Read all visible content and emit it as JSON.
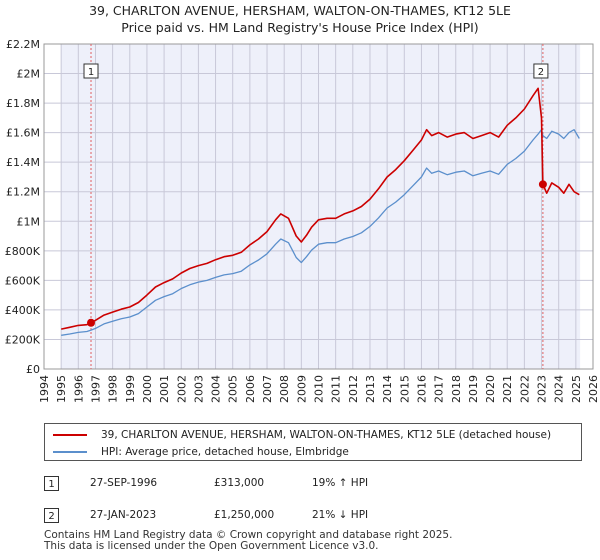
{
  "page": {
    "title_line1": "39, CHARLTON AVENUE, HERSHAM, WALTON-ON-THAMES, KT12 5LE",
    "title_line2": "Price paid vs. HM Land Registry's House Price Index (HPI)"
  },
  "legend": {
    "property_label": "39, CHARLTON AVENUE, HERSHAM, WALTON-ON-THAMES, KT12 5LE (detached house)",
    "hpi_label": "HPI: Average price, detached house, Elmbridge"
  },
  "sales": [
    {
      "badge": "1",
      "date": "27-SEP-1996",
      "price": "£313,000",
      "hpi_change": "19% ↑ HPI"
    },
    {
      "badge": "2",
      "date": "27-JAN-2023",
      "price": "£1,250,000",
      "hpi_change": "21% ↓ HPI"
    }
  ],
  "footer": {
    "line1": "Contains HM Land Registry data © Crown copyright and database right 2025.",
    "line2": "This data is licensed under the Open Government Licence v3.0."
  },
  "colors": {
    "property": "#cc0000",
    "hpi": "#5b8fcc",
    "grid": "#c8c8d8",
    "plot_bg": "#eef0fa",
    "future_bg": "#ffffff"
  },
  "chart_data": {
    "type": "line",
    "title": "39, CHARLTON AVENUE, HERSHAM, WALTON-ON-THAMES, KT12 5LE — Price paid vs. HM Land Registry's House Price Index (HPI)",
    "xlabel": "",
    "ylabel": "",
    "xlim": [
      1994,
      2026
    ],
    "ylim": [
      0,
      2200000
    ],
    "y_ticks": [
      0,
      200000,
      400000,
      600000,
      800000,
      1000000,
      1200000,
      1400000,
      1600000,
      1800000,
      2000000,
      2200000
    ],
    "y_tick_labels": [
      "£0",
      "£200K",
      "£400K",
      "£600K",
      "£800K",
      "£1M",
      "£1.2M",
      "£1.4M",
      "£1.6M",
      "£1.8M",
      "£2M",
      "£2.2M"
    ],
    "x_ticks": [
      1994,
      1995,
      1996,
      1997,
      1998,
      1999,
      2000,
      2001,
      2002,
      2003,
      2004,
      2005,
      2006,
      2007,
      2008,
      2009,
      2010,
      2011,
      2012,
      2013,
      2014,
      2015,
      2016,
      2017,
      2018,
      2019,
      2020,
      2021,
      2022,
      2023,
      2024,
      2025,
      2026
    ],
    "x_tick_labels": [
      "1994",
      "1995",
      "1996",
      "1997",
      "1998",
      "1999",
      "2000",
      "2001",
      "2002",
      "2003",
      "2004",
      "2005",
      "2006",
      "2007",
      "2008",
      "2009",
      "2010",
      "2011",
      "2012",
      "2013",
      "2014",
      "2015",
      "2016",
      "2017",
      "2018",
      "2019",
      "2020",
      "2021",
      "2022",
      "2023",
      "2024",
      "2025",
      "2026"
    ],
    "data_start": 1995,
    "data_end": 2025.25,
    "series": [
      {
        "name": "39, CHARLTON AVENUE, HERSHAM, WALTON-ON-THAMES, KT12 5LE (detached house)",
        "color": "#cc0000",
        "x": [
          1995.0,
          1995.5,
          1996.0,
          1996.5,
          1996.74,
          1997.0,
          1997.5,
          1998.0,
          1998.5,
          1999.0,
          1999.5,
          2000.0,
          2000.5,
          2001.0,
          2001.5,
          2002.0,
          2002.5,
          2003.0,
          2003.5,
          2004.0,
          2004.5,
          2005.0,
          2005.5,
          2006.0,
          2006.5,
          2007.0,
          2007.5,
          2007.8,
          2008.25,
          2008.7,
          2009.0,
          2009.3,
          2009.6,
          2010.0,
          2010.5,
          2011.0,
          2011.5,
          2012.0,
          2012.5,
          2013.0,
          2013.5,
          2014.0,
          2014.5,
          2015.0,
          2015.5,
          2016.0,
          2016.3,
          2016.6,
          2017.0,
          2017.5,
          2018.0,
          2018.5,
          2019.0,
          2019.5,
          2020.0,
          2020.5,
          2021.0,
          2021.5,
          2022.0,
          2022.5,
          2022.8,
          2023.0,
          2023.08,
          2023.3,
          2023.6,
          2024.0,
          2024.3,
          2024.6,
          2024.9,
          2025.2
        ],
        "y": [
          270000,
          282000,
          295000,
          300000,
          313000,
          330000,
          365000,
          385000,
          405000,
          420000,
          450000,
          500000,
          555000,
          585000,
          610000,
          650000,
          680000,
          700000,
          715000,
          740000,
          760000,
          770000,
          790000,
          840000,
          880000,
          930000,
          1010000,
          1050000,
          1020000,
          900000,
          860000,
          905000,
          960000,
          1010000,
          1020000,
          1020000,
          1050000,
          1070000,
          1100000,
          1150000,
          1220000,
          1300000,
          1350000,
          1410000,
          1480000,
          1550000,
          1620000,
          1580000,
          1600000,
          1570000,
          1590000,
          1600000,
          1560000,
          1580000,
          1600000,
          1570000,
          1650000,
          1700000,
          1760000,
          1850000,
          1900000,
          1700000,
          1250000,
          1190000,
          1260000,
          1230000,
          1190000,
          1250000,
          1200000,
          1180000
        ]
      },
      {
        "name": "HPI: Average price, detached house, Elmbridge",
        "color": "#5b8fcc",
        "x": [
          1995.0,
          1995.5,
          1996.0,
          1996.5,
          1996.74,
          1997.0,
          1997.5,
          1998.0,
          1998.5,
          1999.0,
          1999.5,
          2000.0,
          2000.5,
          2001.0,
          2001.5,
          2002.0,
          2002.5,
          2003.0,
          2003.5,
          2004.0,
          2004.5,
          2005.0,
          2005.5,
          2006.0,
          2006.5,
          2007.0,
          2007.5,
          2007.8,
          2008.25,
          2008.7,
          2009.0,
          2009.3,
          2009.6,
          2010.0,
          2010.5,
          2011.0,
          2011.5,
          2012.0,
          2012.5,
          2013.0,
          2013.5,
          2014.0,
          2014.5,
          2015.0,
          2015.5,
          2016.0,
          2016.3,
          2016.6,
          2017.0,
          2017.5,
          2018.0,
          2018.5,
          2019.0,
          2019.5,
          2020.0,
          2020.5,
          2021.0,
          2021.5,
          2022.0,
          2022.5,
          2022.8,
          2023.0,
          2023.08,
          2023.3,
          2023.6,
          2024.0,
          2024.3,
          2024.6,
          2024.9,
          2025.2
        ],
        "y": [
          228000,
          237000,
          248000,
          254000,
          263000,
          275000,
          305000,
          323000,
          340000,
          352000,
          375000,
          420000,
          465000,
          490000,
          510000,
          545000,
          570000,
          588000,
          600000,
          620000,
          637000,
          646000,
          662000,
          705000,
          738000,
          780000,
          845000,
          880000,
          855000,
          755000,
          720000,
          760000,
          805000,
          845000,
          855000,
          855000,
          880000,
          897000,
          922000,
          965000,
          1023000,
          1090000,
          1130000,
          1180000,
          1240000,
          1300000,
          1360000,
          1325000,
          1340000,
          1315000,
          1332000,
          1340000,
          1308000,
          1325000,
          1340000,
          1318000,
          1385000,
          1425000,
          1475000,
          1550000,
          1590000,
          1620000,
          1580000,
          1560000,
          1610000,
          1590000,
          1560000,
          1600000,
          1620000,
          1560000
        ]
      }
    ],
    "sale_markers": [
      {
        "label": "1",
        "x": 1996.74,
        "y": 313000
      },
      {
        "label": "2",
        "x": 2023.08,
        "y": 1250000
      }
    ]
  }
}
